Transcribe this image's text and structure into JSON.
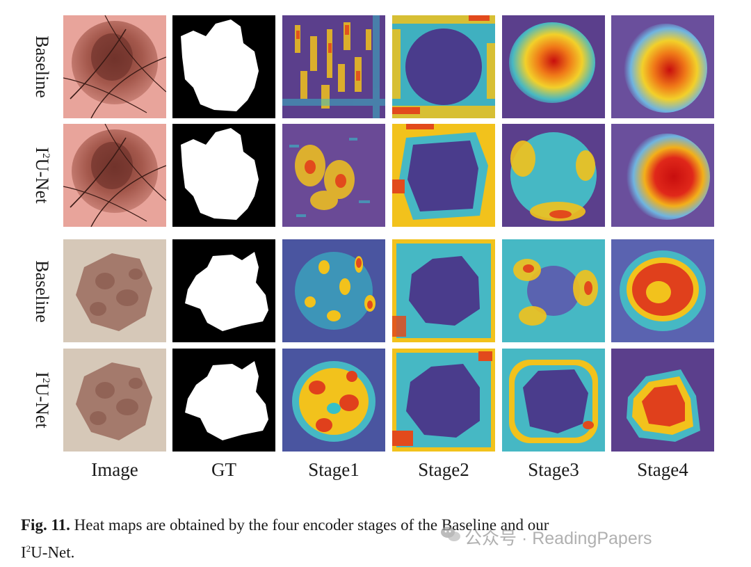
{
  "figure": {
    "row_labels": [
      {
        "main": "Baseline",
        "sup": ""
      },
      {
        "main": "U-Net",
        "sup": "2",
        "prefix": "I"
      },
      {
        "main": "Baseline",
        "sup": ""
      },
      {
        "main": "U-Net",
        "sup": "2",
        "prefix": "I"
      }
    ],
    "column_labels": [
      "Image",
      "GT",
      "Stage1",
      "Stage2",
      "Stage3",
      "Stage4"
    ]
  },
  "caption": {
    "label": "Fig. 11.",
    "text_line1": "Heat maps are obtained by the four encoder stages of the Baseline and our",
    "prefix": "I",
    "sup": "2",
    "text_line2": "U-Net."
  },
  "watermark": {
    "text": "公众号 · ReadingPapers",
    "icon": "wechat-icon"
  }
}
